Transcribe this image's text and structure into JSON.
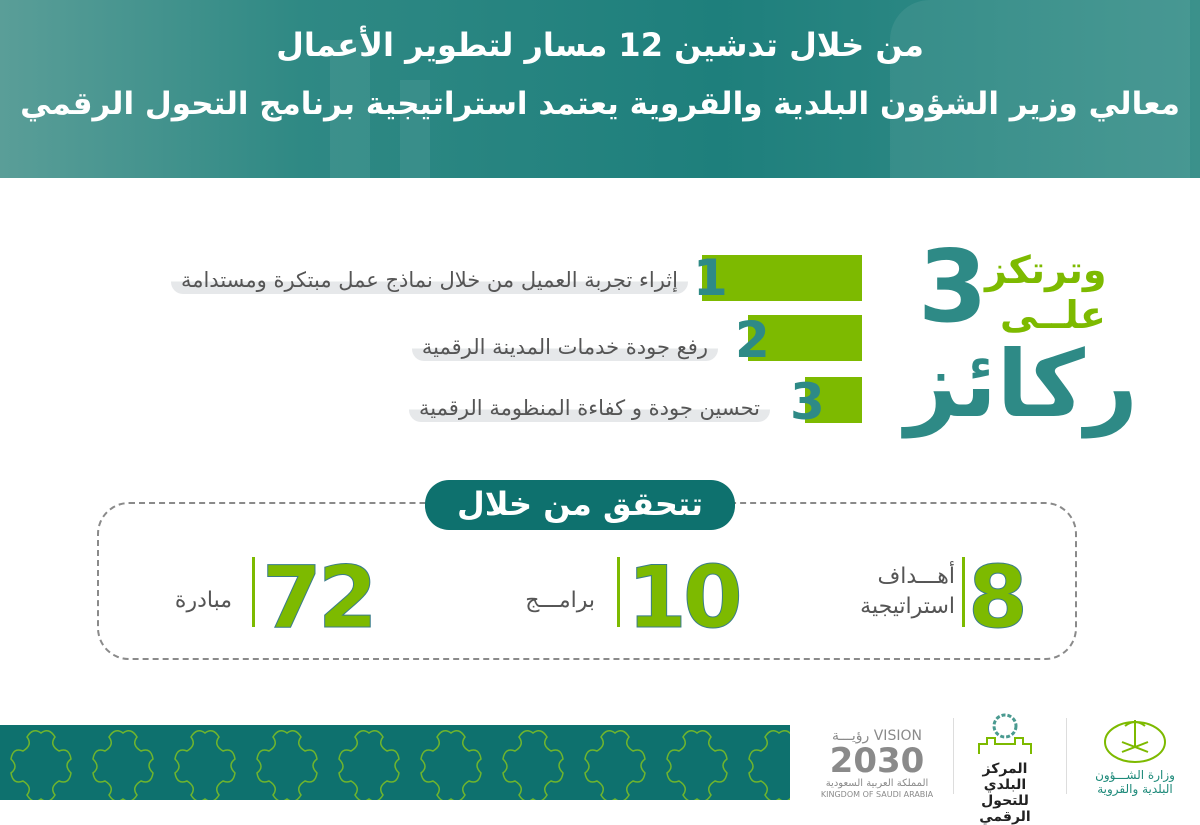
{
  "header": {
    "line1": "من خلال تدشين  12 مسار لتطوير الأعمال",
    "line2": "معالي وزير الشؤون البلدية والقروية يعتمد استراتيجية برنامج التحول الرقمي"
  },
  "pillars": {
    "heading_word1": "وترتكز",
    "heading_word2": "علــى",
    "heading_number": "3",
    "heading_word3": "ركائز",
    "items": [
      {
        "number": "1",
        "text": "إثراء تجربة العميل من خلال نماذج عمل مبتكرة ومستدامة"
      },
      {
        "number": "2",
        "text": "رفع جودة خدمات المدينة الرقمية"
      },
      {
        "number": "3",
        "text": "تحسين جودة و كفاءة المنظومة الرقمية"
      }
    ]
  },
  "achieve": {
    "pill": "تتحقق من خلال",
    "stats": [
      {
        "value": "8",
        "label_line1": "أهـــداف",
        "label_line2": "استراتيجية"
      },
      {
        "value": "10",
        "label_line1": "برامـــج"
      },
      {
        "value": "72",
        "label_line1": "مبادرة"
      }
    ]
  },
  "footer": {
    "logos": [
      {
        "name": "vision-2030",
        "lines": [
          "VISION رؤيـــة",
          "2030",
          "المملكة العربية السعودية",
          "KINGDOM OF SAUDI ARABIA"
        ]
      },
      {
        "name": "municipal-digital-center",
        "lines": [
          "المركز البلدي",
          "للتحول الرقمي"
        ]
      },
      {
        "name": "ministry-municipal-rural",
        "lines": [
          "وزارة الشـــؤون",
          "البلدية والقروية"
        ]
      }
    ]
  },
  "colors": {
    "teal": "#0e716e",
    "green": "#7dba00",
    "header": "#2f8984",
    "text_gray": "#555555"
  }
}
